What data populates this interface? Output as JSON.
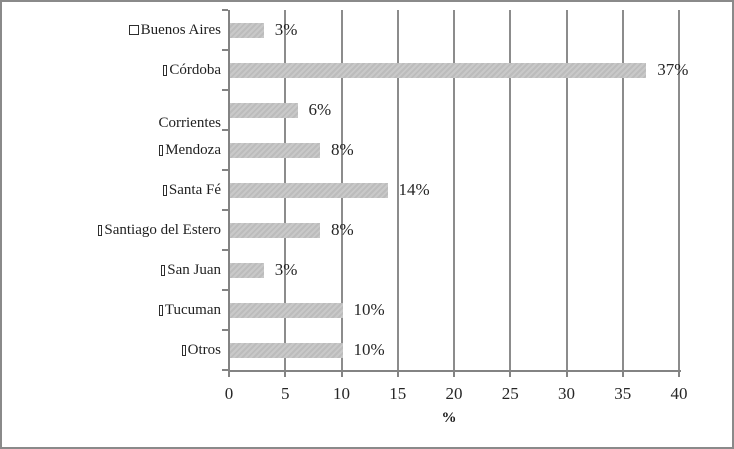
{
  "chart_data": {
    "type": "bar",
    "orientation": "horizontal",
    "title": "",
    "xlabel": "%",
    "ylabel": "",
    "xlim": [
      0,
      40
    ],
    "grid": true,
    "legend": "none",
    "categories": [
      "Buenos Aires",
      "Córdoba",
      "Corrientes",
      "Mendoza",
      "Santa Fé",
      "Santiago del Estero",
      "San Juan",
      "Tucuman",
      "Otros"
    ],
    "values": [
      3,
      37,
      6,
      8,
      14,
      8,
      3,
      10,
      10
    ],
    "value_labels": [
      "3%",
      "37%",
      "6%",
      "8%",
      "14%",
      "8%",
      "3%",
      "10%",
      "10%"
    ],
    "label_marker_glyphs": [
      "wide",
      "narrow",
      "none",
      "narrow",
      "narrow",
      "narrow",
      "narrow",
      "narrow",
      "narrow"
    ],
    "label_dy": [
      0,
      0,
      13,
      0,
      0,
      0,
      0,
      0,
      0
    ],
    "x_ticks": [
      "0",
      "5",
      "10",
      "15",
      "20",
      "25",
      "30",
      "35",
      "40"
    ],
    "colors": {
      "bar_fill": "#c2c2c2",
      "gridline": "#8c8c8c",
      "axis": "#838383",
      "text": "#262626",
      "frame_border": "#8a8a8a",
      "background": "#ffffff"
    }
  }
}
